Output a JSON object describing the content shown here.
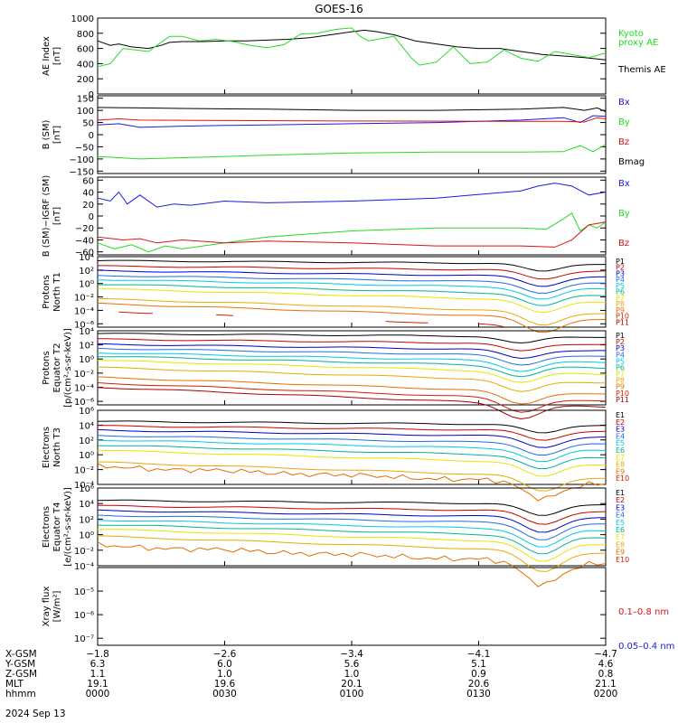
{
  "title": "GOES-16",
  "colors": {
    "black": "#000000",
    "green": "#22dd22",
    "blue": "#1a1ae6",
    "red": "#dd1111",
    "P1": "#000000",
    "P2": "#c40000",
    "P3": "#0000c8",
    "P4": "#1e6ee6",
    "P5": "#00c8e6",
    "P6": "#00b496",
    "P7": "#e6e600",
    "P8": "#e6aa00",
    "P9": "#e66e00",
    "P10": "#d21e00",
    "P11": "#aa0000"
  },
  "chart_data": [
    {
      "type": "line",
      "ylabel": [
        "AE Index",
        "[nT]"
      ],
      "ylim": [
        0,
        1000
      ],
      "yticks": [
        "0",
        "200",
        "400",
        "600",
        "800",
        "1000"
      ],
      "yticks_values": [
        0,
        200,
        400,
        600,
        800,
        1000
      ],
      "legend": [
        {
          "text": "Kyoto",
          "color": "#22dd22"
        },
        {
          "text": "proxy AE",
          "color": "#22dd22"
        },
        {
          "text": "Themis AE",
          "color": "#000000"
        }
      ],
      "series": [
        {
          "name": "Themis AE",
          "color": "#000000",
          "x": [
            0,
            3,
            5,
            8,
            12,
            15,
            17,
            20,
            25,
            30,
            35,
            40,
            45,
            50,
            55,
            60,
            63,
            66,
            70,
            75,
            80,
            85,
            90,
            95,
            100,
            105,
            110,
            115,
            120
          ],
          "y": [
            700,
            640,
            660,
            620,
            600,
            640,
            680,
            690,
            690,
            700,
            700,
            710,
            720,
            740,
            780,
            820,
            840,
            820,
            780,
            700,
            660,
            620,
            600,
            600,
            560,
            520,
            500,
            480,
            450
          ]
        },
        {
          "name": "Kyoto proxy AE",
          "color": "#22dd22",
          "x": [
            0,
            3,
            6,
            9,
            12,
            14,
            17,
            20,
            24,
            28,
            32,
            36,
            40,
            44,
            48,
            52,
            56,
            60,
            62,
            64,
            66,
            70,
            74,
            76,
            80,
            84,
            88,
            92,
            96,
            100,
            104,
            108,
            112,
            116,
            120
          ],
          "y": [
            360,
            400,
            600,
            580,
            560,
            640,
            760,
            760,
            700,
            720,
            690,
            640,
            610,
            650,
            790,
            800,
            850,
            870,
            760,
            700,
            720,
            760,
            480,
            380,
            420,
            620,
            400,
            420,
            580,
            470,
            430,
            560,
            520,
            480,
            540
          ]
        }
      ]
    },
    {
      "type": "line",
      "ylabel": [
        "B (SM)",
        "[nT]"
      ],
      "ylim": [
        -160,
        160
      ],
      "yticks": [
        "−150",
        "−100",
        "−50",
        "0",
        "50",
        "100",
        "150"
      ],
      "yticks_values": [
        -150,
        -100,
        -50,
        0,
        50,
        100,
        150
      ],
      "legend": [
        {
          "text": "Bx",
          "color": "#1a1ae6"
        },
        {
          "text": "By",
          "color": "#22dd22"
        },
        {
          "text": "Bz",
          "color": "#dd1111"
        },
        {
          "text": "Bmag",
          "color": "#000000"
        }
      ],
      "series": [
        {
          "name": "Bmag",
          "color": "#000000",
          "x": [
            0,
            10,
            20,
            40,
            60,
            80,
            100,
            110,
            115,
            118,
            120
          ],
          "y": [
            112,
            110,
            108,
            105,
            100,
            100,
            105,
            112,
            100,
            110,
            95
          ]
        },
        {
          "name": "Bx",
          "color": "#1a1ae6",
          "x": [
            0,
            5,
            10,
            20,
            30,
            40,
            60,
            80,
            100,
            110,
            114,
            117,
            120
          ],
          "y": [
            40,
            45,
            30,
            35,
            38,
            40,
            45,
            50,
            60,
            70,
            50,
            78,
            75
          ]
        },
        {
          "name": "Bz",
          "color": "#dd1111",
          "x": [
            0,
            5,
            10,
            30,
            60,
            90,
            110,
            115,
            118,
            120
          ],
          "y": [
            60,
            65,
            60,
            58,
            56,
            55,
            55,
            52,
            70,
            65
          ]
        },
        {
          "name": "By",
          "color": "#22dd22",
          "x": [
            0,
            5,
            10,
            20,
            40,
            60,
            80,
            100,
            110,
            114,
            117,
            120
          ],
          "y": [
            -90,
            -95,
            -100,
            -95,
            -85,
            -75,
            -72,
            -72,
            -70,
            -45,
            -70,
            -40
          ]
        }
      ]
    },
    {
      "type": "line",
      "ylabel": [
        "B (SM)−IGRF (SM)",
        "[nT]"
      ],
      "ylim": [
        -65,
        65
      ],
      "yticks": [
        "−60",
        "−40",
        "−20",
        "0",
        "20",
        "40",
        "60"
      ],
      "yticks_values": [
        -60,
        -40,
        -20,
        0,
        20,
        40,
        60
      ],
      "legend": [
        {
          "text": "Bx",
          "color": "#1a1ae6"
        },
        {
          "text": "By",
          "color": "#22dd22"
        },
        {
          "text": "Bz",
          "color": "#dd1111"
        }
      ],
      "series": [
        {
          "name": "Bx",
          "color": "#1a1ae6",
          "x": [
            0,
            3,
            5,
            7,
            10,
            14,
            18,
            22,
            30,
            40,
            60,
            80,
            100,
            104,
            108,
            112,
            116,
            120
          ],
          "y": [
            30,
            25,
            40,
            20,
            35,
            15,
            20,
            18,
            25,
            22,
            25,
            30,
            42,
            50,
            55,
            50,
            35,
            40
          ]
        },
        {
          "name": "By",
          "color": "#22dd22",
          "x": [
            0,
            4,
            8,
            12,
            16,
            20,
            30,
            40,
            60,
            80,
            100,
            106,
            110,
            112,
            114,
            116,
            118,
            120
          ],
          "y": [
            -45,
            -55,
            -48,
            -60,
            -50,
            -55,
            -45,
            -35,
            -25,
            -20,
            -20,
            -22,
            -5,
            5,
            -25,
            -15,
            -20,
            -10
          ]
        },
        {
          "name": "Bz",
          "color": "#dd1111",
          "x": [
            0,
            6,
            10,
            14,
            20,
            30,
            40,
            60,
            80,
            100,
            108,
            112,
            116,
            120
          ],
          "y": [
            -35,
            -40,
            -38,
            -45,
            -40,
            -45,
            -42,
            -45,
            -50,
            -50,
            -52,
            -40,
            -15,
            -10
          ]
        }
      ]
    },
    {
      "type": "line",
      "ylabel": [
        "Protons",
        "North T1"
      ],
      "log": true,
      "ylim": [
        -6.5,
        4
      ],
      "yticks": [
        "10⁴",
        "10²",
        "10⁰",
        "10⁻²",
        "10⁻⁴",
        "10⁻⁶"
      ],
      "yticks_values": [
        4,
        2,
        0,
        -2,
        -4,
        -6
      ],
      "legend": [
        "P1",
        "P2",
        "P3",
        "P4",
        "P5",
        "P6",
        "P7",
        "P8",
        "P9",
        "P10",
        "P11"
      ],
      "dip": {
        "at": 105,
        "depth": 1.2
      },
      "series": [
        {
          "name": "P1",
          "base": 3.4
        },
        {
          "name": "P2",
          "base": 2.6
        },
        {
          "name": "P3",
          "base": 1.9
        },
        {
          "name": "P4",
          "base": 1.2
        },
        {
          "name": "P5",
          "base": 0.6
        },
        {
          "name": "P6",
          "base": -0.1
        },
        {
          "name": "P7",
          "base": -0.8
        },
        {
          "name": "P8",
          "base": -2.3
        },
        {
          "name": "P9",
          "base": -3.0
        },
        {
          "name": "P10",
          "base": -4.1,
          "segments": [
            [
              5,
              14
            ],
            [
              28,
              32
            ],
            [
              68,
              78
            ],
            [
              90,
              96
            ]
          ]
        }
      ]
    },
    {
      "type": "line",
      "ylabel": [
        "Protons",
        "Equator T2",
        "[p/(cm²-s-sr-keV)]"
      ],
      "log": true,
      "ylim": [
        -6.5,
        4
      ],
      "yticks": [
        "10⁴",
        "10²",
        "10⁰",
        "10⁻²",
        "10⁻⁴",
        "10⁻⁶"
      ],
      "yticks_values": [
        4,
        2,
        0,
        -2,
        -4,
        -6
      ],
      "legend": [
        "P1",
        "P2",
        "P3",
        "P4",
        "P5",
        "P6",
        "P7",
        "P8",
        "P9",
        "P10",
        "P11"
      ],
      "dip": {
        "at": 100,
        "depth": 1.0
      },
      "series": [
        {
          "name": "P1",
          "base": 3.6
        },
        {
          "name": "P2",
          "base": 2.8
        },
        {
          "name": "P3",
          "base": 2.1
        },
        {
          "name": "P4",
          "base": 1.5
        },
        {
          "name": "P5",
          "base": 0.9
        },
        {
          "name": "P6",
          "base": 0.4
        },
        {
          "name": "P7",
          "base": -0.2
        },
        {
          "name": "P8",
          "base": -1.2
        },
        {
          "name": "P9",
          "base": -2.6
        },
        {
          "name": "P10",
          "base": -3.4
        },
        {
          "name": "P11",
          "base": -4.0,
          "segments": [
            [
              0,
              120
            ]
          ]
        }
      ]
    },
    {
      "type": "line",
      "ylabel": [
        "Electrons",
        "North T3"
      ],
      "log": true,
      "ylim": [
        -4,
        6
      ],
      "yticks": [
        "10⁶",
        "10⁴",
        "10²",
        "10⁰",
        "10⁻²",
        "10⁻⁴"
      ],
      "yticks_values": [
        6,
        4,
        2,
        0,
        -2,
        -4
      ],
      "legend": [
        "E1",
        "E2",
        "E3",
        "E4",
        "E5",
        "E6",
        "E7",
        "E8",
        "E9",
        "E10"
      ],
      "dip": {
        "at": 105,
        "depth": 1.2
      },
      "series": [
        {
          "name": "E1",
          "base": 4.5
        },
        {
          "name": "E2",
          "base": 3.9
        },
        {
          "name": "E3",
          "base": 3.3
        },
        {
          "name": "E4",
          "base": 2.6
        },
        {
          "name": "E5",
          "base": 2.0
        },
        {
          "name": "E6",
          "base": 1.3
        },
        {
          "name": "E7",
          "base": 0.6
        },
        {
          "name": "E8",
          "base": -1.0
        },
        {
          "name": "E9",
          "base": -1.6,
          "segments": [
            [
              0,
              120
            ]
          ],
          "noisy": true
        }
      ]
    },
    {
      "type": "line",
      "ylabel": [
        "Electrons",
        "Equator T4",
        "[e/(cm²-s-sr-keV)]"
      ],
      "log": true,
      "ylim": [
        -4,
        6
      ],
      "yticks": [
        "10⁶",
        "10⁴",
        "10²",
        "10⁰",
        "10⁻²",
        "10⁻⁴"
      ],
      "yticks_values": [
        6,
        4,
        2,
        0,
        -2,
        -4
      ],
      "legend": [
        "E1",
        "E2",
        "E3",
        "E4",
        "E5",
        "E6",
        "E7",
        "E8",
        "E9",
        "E10"
      ],
      "dip": {
        "at": 105,
        "depth": 1.6
      },
      "series": [
        {
          "name": "E1",
          "base": 4.4
        },
        {
          "name": "E2",
          "base": 3.7
        },
        {
          "name": "E3",
          "base": 3.1
        },
        {
          "name": "E4",
          "base": 2.5
        },
        {
          "name": "E5",
          "base": 1.9
        },
        {
          "name": "E6",
          "base": 1.3
        },
        {
          "name": "E7",
          "base": 0.7
        },
        {
          "name": "E8",
          "base": -0.2
        },
        {
          "name": "E9",
          "base": -1.4,
          "segments": [
            [
              0,
              120
            ]
          ],
          "noisy": true
        }
      ]
    },
    {
      "type": "line",
      "ylabel": [
        "Xray flux",
        "[W/m²]"
      ],
      "log": true,
      "ylim": [
        -7.3,
        -4
      ],
      "yticks": [
        "10⁻⁵",
        "10⁻⁶",
        "10⁻⁷"
      ],
      "yticks_values": [
        -5,
        -6,
        -7
      ],
      "legend": [
        {
          "text": "0.1–0.8 nm",
          "color": "#dd1111"
        },
        {
          "text": "0.05–0.4 nm",
          "color": "#1a1ae6"
        }
      ],
      "series": [
        {
          "name": "0.1–0.8 nm",
          "color": "#dd1111",
          "x": [
            12,
            20,
            30,
            40,
            50,
            60,
            70,
            80,
            86,
            90,
            94,
            98,
            105,
            110,
            114,
            120
          ],
          "y": [
            -5.0,
            -5.02,
            -5.0,
            -5.0,
            -4.95,
            -5.0,
            -5.0,
            -5.0,
            -5.0,
            -4.95,
            -4.85,
            -4.9,
            -4.95,
            -4.95,
            -4.97,
            -4.98
          ]
        },
        {
          "name": "0.05–0.4 nm",
          "color": "#1a1ae6",
          "x": [
            12,
            20,
            30,
            40,
            50,
            56,
            60,
            64,
            70,
            80,
            86,
            88,
            90,
            93,
            96,
            100,
            106,
            112,
            116,
            120
          ],
          "y": [
            -6.1,
            -6.12,
            -6.1,
            -6.1,
            -6.05,
            -5.95,
            -5.9,
            -6.05,
            -6.1,
            -6.1,
            -6.05,
            -5.85,
            -5.6,
            -5.7,
            -5.9,
            -5.9,
            -6.0,
            -6.05,
            -6.05,
            -6.06
          ]
        }
      ]
    }
  ],
  "x_axis": {
    "range_minutes": [
      0,
      120
    ],
    "ticks_minutes": [
      0,
      30,
      60,
      90,
      120
    ],
    "rows": [
      {
        "label": "X-GSM",
        "values": [
          "−1.8",
          "−2.6",
          "−3.4",
          "−4.1",
          "−4.7"
        ]
      },
      {
        "label": "Y-GSM",
        "values": [
          "6.3",
          "6.0",
          "5.6",
          "5.1",
          "4.6"
        ]
      },
      {
        "label": "Z-GSM",
        "values": [
          "1.1",
          "1.0",
          "1.0",
          "0.9",
          "0.8"
        ]
      },
      {
        "label": "MLT",
        "values": [
          "19.1",
          "19.6",
          "20.1",
          "20.6",
          "21.1"
        ]
      },
      {
        "label": "hhmm",
        "values": [
          "0000",
          "0030",
          "0100",
          "0130",
          "0200"
        ]
      }
    ],
    "date": "2024 Sep 13"
  }
}
